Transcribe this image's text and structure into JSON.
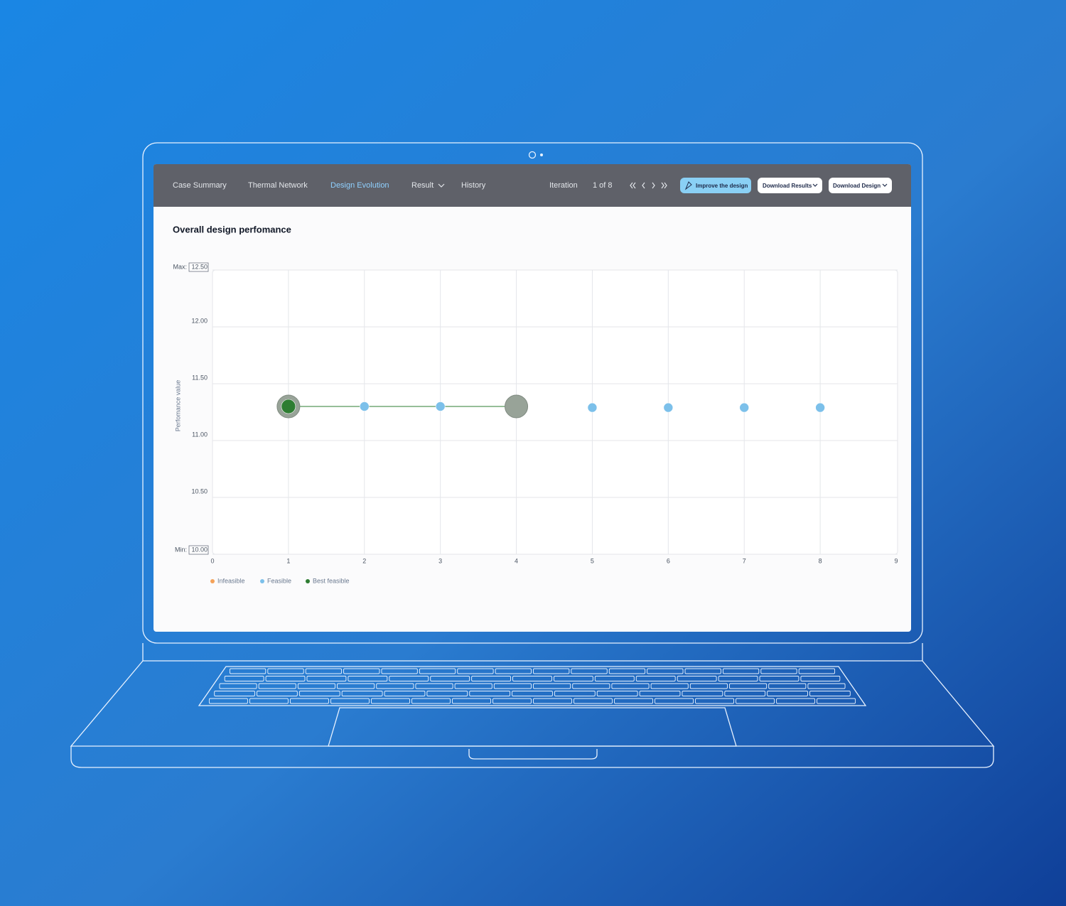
{
  "nav": {
    "tabs": [
      "Case Summary",
      "Thermal Network",
      "Design Evolution",
      "Result",
      "History"
    ],
    "iteration_label": "Iteration",
    "iteration_value": "1 of 8"
  },
  "buttons": [
    "Improve the design",
    "Download Results",
    "Download Design"
  ],
  "chart_data": {
    "type": "scatter",
    "title": "Overall design perfomance",
    "y_label": "Perfomance value",
    "y_max_prefix": "Max:",
    "y_min_prefix": "Min:",
    "xlim": [
      0,
      9
    ],
    "xticks": [
      0,
      1,
      2,
      3,
      4,
      5,
      6,
      7,
      8,
      9
    ],
    "ylim": [
      10,
      12.5
    ],
    "yticks": [
      {
        "value": 10,
        "label": "10.00"
      },
      {
        "value": 10.5,
        "label": "10.50"
      },
      {
        "value": 11,
        "label": "11.00"
      },
      {
        "value": 11.5,
        "label": "11.50"
      },
      {
        "value": 12,
        "label": "12.00"
      },
      {
        "value": 12.5,
        "label": "12.50"
      }
    ],
    "grid": true,
    "series": [
      {
        "name": "Infeasible",
        "color": "#f4a259",
        "x": [],
        "values": []
      },
      {
        "name": "Feasible",
        "color": "#7cc0ea",
        "x": [
          2,
          3,
          5,
          6,
          7,
          8
        ],
        "values": [
          11.3,
          11.3,
          11.29,
          11.29,
          11.29,
          11.29
        ]
      },
      {
        "name": "Best feasible",
        "color": "#2e7d32",
        "x": [
          1
        ],
        "values": [
          11.3
        ]
      }
    ],
    "comparison": {
      "color": "#2e7d32",
      "x": [
        1,
        4
      ],
      "y": [
        11.3,
        11.3
      ]
    }
  }
}
